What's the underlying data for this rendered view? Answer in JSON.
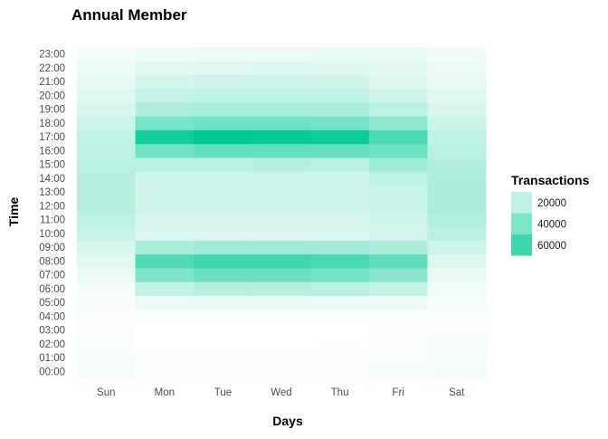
{
  "chart_data": {
    "type": "heatmap",
    "title": "Annual Member",
    "xlabel": "Days",
    "ylabel": "Time",
    "x": [
      "Sun",
      "Mon",
      "Tue",
      "Wed",
      "Thu",
      "Fri",
      "Sat"
    ],
    "y": [
      "00:00",
      "01:00",
      "02:00",
      "03:00",
      "04:00",
      "05:00",
      "06:00",
      "07:00",
      "08:00",
      "09:00",
      "10:00",
      "11:00",
      "12:00",
      "13:00",
      "14:00",
      "15:00",
      "16:00",
      "17:00",
      "18:00",
      "19:00",
      "20:00",
      "21:00",
      "22:00",
      "23:00"
    ],
    "values": [
      [
        2800,
        800,
        800,
        1000,
        1400,
        2000,
        3000
      ],
      [
        2200,
        500,
        500,
        600,
        700,
        1100,
        2400
      ],
      [
        1600,
        300,
        300,
        350,
        400,
        600,
        1800
      ],
      [
        1200,
        300,
        300,
        300,
        300,
        500,
        1300
      ],
      [
        1300,
        1500,
        1600,
        1600,
        1600,
        1500,
        1200
      ],
      [
        1800,
        6000,
        6500,
        6500,
        6200,
        5800,
        2200
      ],
      [
        3500,
        20000,
        23000,
        23000,
        22000,
        19000,
        4000
      ],
      [
        6000,
        40000,
        46000,
        46000,
        44000,
        38000,
        7000
      ],
      [
        9000,
        54000,
        60000,
        60000,
        57000,
        50000,
        11000
      ],
      [
        13000,
        27000,
        30000,
        30000,
        29000,
        26000,
        16000
      ],
      [
        18000,
        12000,
        12000,
        12000,
        12000,
        14000,
        22000
      ],
      [
        21000,
        13000,
        13000,
        13000,
        13000,
        15000,
        24000
      ],
      [
        23000,
        16000,
        16000,
        16000,
        16000,
        18000,
        26000
      ],
      [
        23000,
        15000,
        15000,
        15000,
        15000,
        18000,
        26000
      ],
      [
        23000,
        16000,
        16000,
        16000,
        16000,
        20000,
        25000
      ],
      [
        22000,
        22000,
        22000,
        23000,
        22000,
        30000,
        24000
      ],
      [
        21000,
        45000,
        48000,
        48000,
        47000,
        46000,
        22000
      ],
      [
        19000,
        74000,
        80000,
        78000,
        76000,
        56000,
        20000
      ],
      [
        16000,
        42000,
        45000,
        45000,
        43000,
        35000,
        17000
      ],
      [
        13000,
        25000,
        27000,
        27000,
        26000,
        21000,
        13000
      ],
      [
        10000,
        19000,
        20000,
        20000,
        20000,
        15000,
        10000
      ],
      [
        8000,
        14000,
        16000,
        16000,
        15000,
        11000,
        7000
      ],
      [
        6000,
        9000,
        10000,
        11000,
        11000,
        9000,
        6000
      ],
      [
        3500,
        5000,
        5500,
        6000,
        6500,
        6500,
        4500
      ]
    ],
    "color_scale": {
      "low": "#ffffff",
      "high": "#00c994",
      "min": 0,
      "max": 80000
    },
    "legend": {
      "title": "Transactions",
      "breaks": [
        "20000",
        "40000",
        "60000"
      ],
      "position": "right"
    },
    "grid": true
  }
}
